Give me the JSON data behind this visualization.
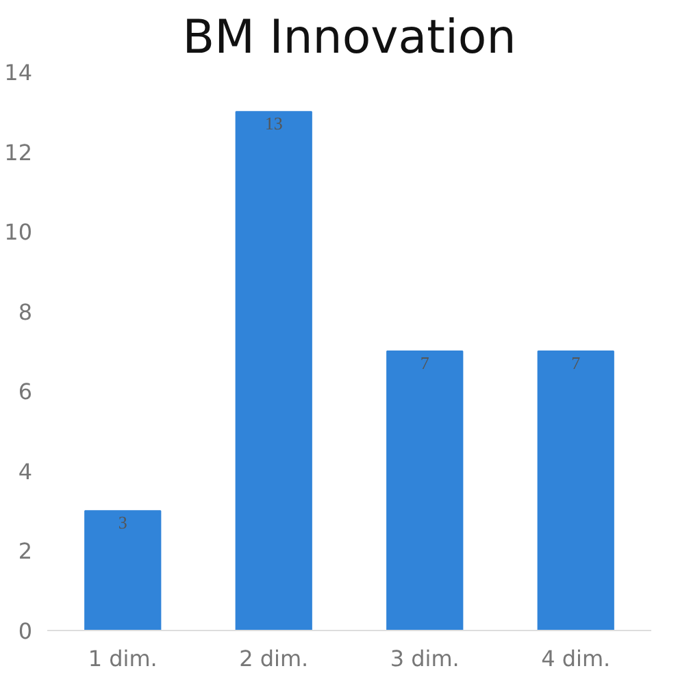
{
  "chart_data": {
    "type": "bar",
    "title": "BM Innovation",
    "categories": [
      "1 dim.",
      "2 dim.",
      "3 dim.",
      "4 dim."
    ],
    "series": [
      {
        "color": "#3184d9",
        "values": [
          3,
          13,
          7,
          7
        ]
      }
    ],
    "ylim": [
      0,
      14
    ],
    "yticks": [
      0,
      2,
      4,
      6,
      8,
      10,
      12,
      14
    ],
    "grid": false,
    "data_labels": true
  }
}
